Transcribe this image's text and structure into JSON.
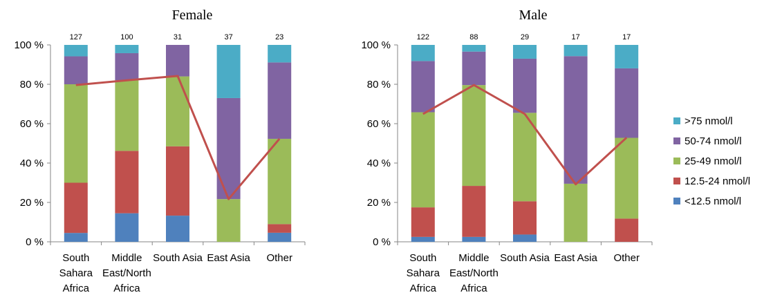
{
  "series_colors": {
    "lt12_5": "#4F81BD",
    "r12_5_24": "#C0504D",
    "r25_49": "#9BBB59",
    "r50_74": "#8064A2",
    "gt75": "#4BACC6",
    "line": "#C0504D"
  },
  "legend": {
    "placement": "right",
    "items": [
      {
        "key": "gt75",
        "label": ">75 nmol/l"
      },
      {
        "key": "r50_74",
        "label": "50-74 nmol/l"
      },
      {
        "key": "r25_49",
        "label": "25-49 nmol/l"
      },
      {
        "key": "r12_5_24",
        "label": "12.5-24 nmol/l"
      },
      {
        "key": "lt12_5",
        "label": "<12.5 nmol/l"
      }
    ]
  },
  "chart_data": [
    {
      "type": "bar",
      "stacked": "percent",
      "title": "Female",
      "ylim": [
        0,
        100
      ],
      "yticks": [
        "0 %",
        "20 %",
        "40 %",
        "60 %",
        "80 %",
        "100 %"
      ],
      "categories": [
        [
          "South",
          "Sahara",
          "Africa"
        ],
        [
          "Middle",
          "East/North",
          "Africa"
        ],
        [
          "South Asia"
        ],
        [
          "East Asia"
        ],
        [
          "Other"
        ]
      ],
      "counts": [
        "127",
        "100",
        "31",
        "37",
        "23"
      ],
      "series": [
        {
          "key": "lt12_5",
          "name": "<12.5 nmol/l",
          "values": [
            4.5,
            14.5,
            13.3,
            0,
            4.6
          ]
        },
        {
          "key": "r12_5_24",
          "name": "12.5-24 nmol/l",
          "values": [
            25.5,
            31.7,
            35.2,
            0,
            4.4
          ]
        },
        {
          "key": "r25_49",
          "name": "25-49 nmol/l",
          "values": [
            50.0,
            35.8,
            35.5,
            21.7,
            43.3
          ]
        },
        {
          "key": "r50_74",
          "name": "50-74 nmol/l",
          "values": [
            14.2,
            13.8,
            16.0,
            51.3,
            38.8
          ]
        },
        {
          "key": "gt75",
          "name": ">75 nmol/l",
          "values": [
            5.8,
            4.2,
            0,
            27.0,
            8.9
          ]
        }
      ],
      "line": {
        "key": "line",
        "values": [
          79.6,
          82.0,
          84.2,
          21.7,
          52.3
        ]
      }
    },
    {
      "type": "bar",
      "stacked": "percent",
      "title": "Male",
      "ylim": [
        0,
        100
      ],
      "yticks": [
        "0 %",
        "20 %",
        "40 %",
        "60 %",
        "80 %",
        "100 %"
      ],
      "categories": [
        [
          "South",
          "Sahara",
          "Africa"
        ],
        [
          "Middle",
          "East/North",
          "Africa"
        ],
        [
          "South Asia"
        ],
        [
          "East Asia"
        ],
        [
          "Other"
        ]
      ],
      "counts": [
        "122",
        "88",
        "29",
        "17",
        "17"
      ],
      "series": [
        {
          "key": "lt12_5",
          "name": "<12.5 nmol/l",
          "values": [
            2.5,
            2.5,
            3.7,
            0,
            0
          ]
        },
        {
          "key": "r12_5_24",
          "name": "12.5-24 nmol/l",
          "values": [
            15.0,
            25.9,
            16.9,
            0,
            11.8
          ]
        },
        {
          "key": "r25_49",
          "name": "25-49 nmol/l",
          "values": [
            48.3,
            51.2,
            44.9,
            29.5,
            41.0
          ]
        },
        {
          "key": "r50_74",
          "name": "50-74 nmol/l",
          "values": [
            26.0,
            17.0,
            27.5,
            64.8,
            35.3
          ]
        },
        {
          "key": "gt75",
          "name": ">75 nmol/l",
          "values": [
            8.2,
            3.4,
            7.0,
            5.7,
            11.9
          ]
        }
      ],
      "line": {
        "key": "line",
        "values": [
          64.9,
          79.6,
          64.9,
          29.2,
          52.9
        ]
      }
    }
  ]
}
